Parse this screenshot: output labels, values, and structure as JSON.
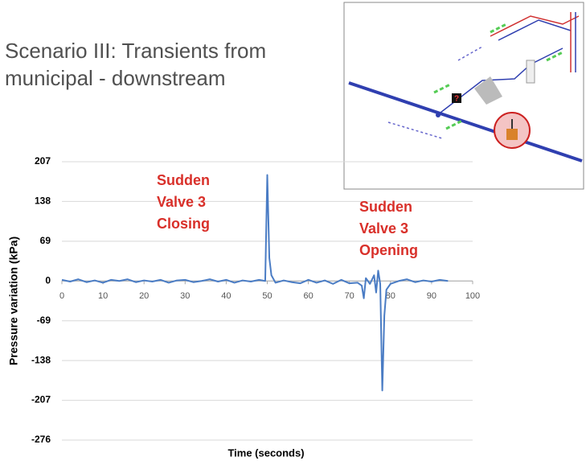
{
  "chart_data": {
    "type": "line",
    "title": "Scenario III: Transients from municipal - downstream",
    "ylabel": "Pressure variation (kPa)",
    "xlabel": "Time (seconds)",
    "annotations": [
      [
        "Sudden",
        "Valve 3",
        "Closing"
      ],
      [
        "Sudden",
        "Valve 3",
        "Opening"
      ]
    ],
    "inset_marker": "?",
    "xlim": [
      0,
      100
    ],
    "xticks": [
      0,
      10,
      20,
      30,
      40,
      50,
      60,
      70,
      80,
      90,
      100
    ],
    "ylim": [
      -276,
      207
    ],
    "yticks": [
      207,
      138,
      69,
      0,
      -69,
      -138,
      -207,
      -276
    ],
    "grid": true,
    "series": [
      {
        "color": "#4a7cc4",
        "x": [
          0,
          2,
          4,
          6,
          8,
          10,
          12,
          14,
          16,
          18,
          20,
          22,
          24,
          26,
          28,
          30,
          32,
          34,
          36,
          38,
          40,
          42,
          44,
          46,
          48,
          49.5,
          50,
          50.5,
          51,
          52,
          54,
          56,
          58,
          60,
          62,
          64,
          66,
          68,
          70,
          72,
          73,
          73.5,
          74,
          75,
          76,
          76.5,
          77,
          77.5,
          78,
          78.5,
          79,
          80,
          82,
          84,
          86,
          88,
          90,
          92,
          94
        ],
        "values": [
          2,
          -1,
          3,
          -2,
          1,
          -3,
          2,
          0,
          3,
          -2,
          1,
          -1,
          2,
          -3,
          1,
          2,
          -2,
          0,
          3,
          -1,
          2,
          -3,
          1,
          -1,
          2,
          0,
          184,
          40,
          10,
          -3,
          1,
          -2,
          -4,
          2,
          -3,
          1,
          -5,
          2,
          -4,
          -3,
          -8,
          -30,
          5,
          -5,
          10,
          -20,
          18,
          -5,
          -190,
          -60,
          -15,
          -5,
          0,
          3,
          -2,
          1,
          -1,
          2,
          0
        ]
      }
    ]
  }
}
